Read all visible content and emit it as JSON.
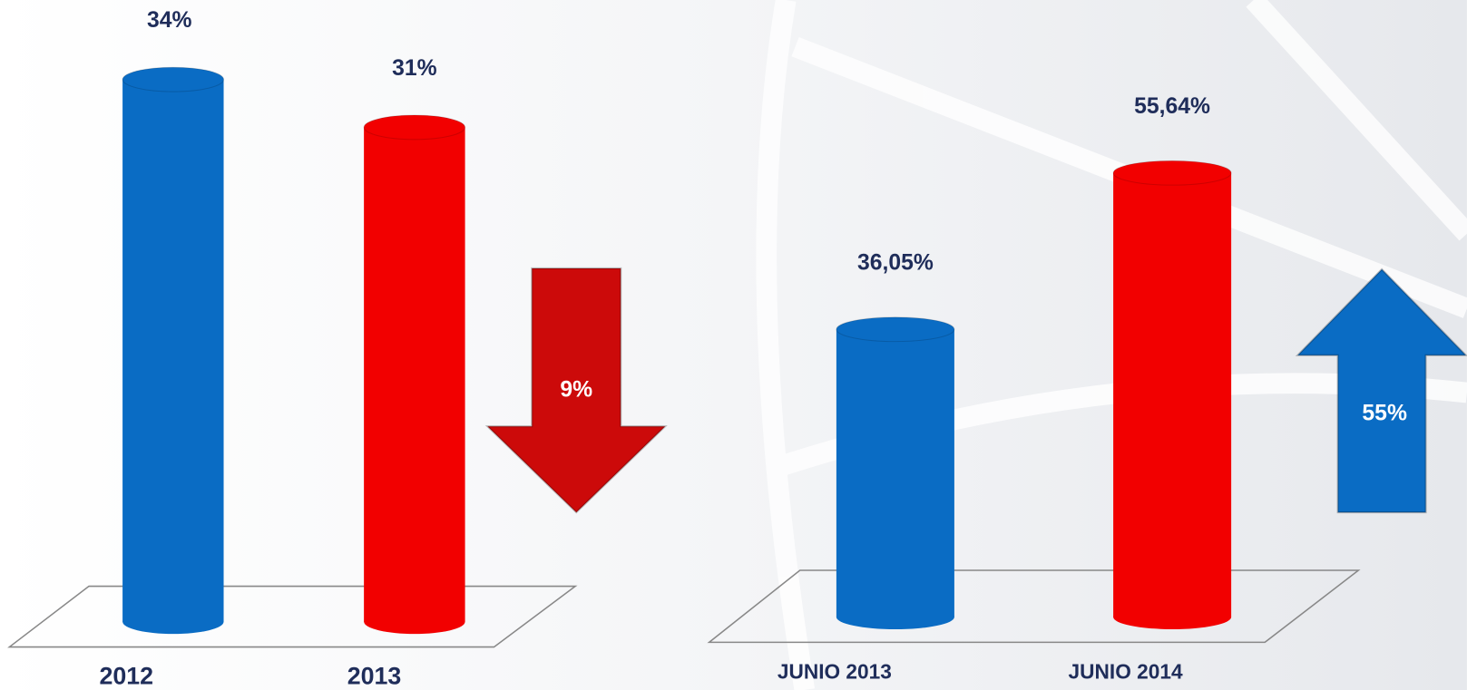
{
  "chart_data": [
    {
      "type": "bar",
      "categories": [
        "2012",
        "2013"
      ],
      "values": [
        34,
        31
      ],
      "value_labels": [
        "34%",
        "31%"
      ],
      "colors": [
        "#0a6cc4",
        "#f20000"
      ],
      "annotation": "9%",
      "annotation_color": "#cc0a0a"
    },
    {
      "type": "bar",
      "categories": [
        "JUNIO 2013",
        "JUNIO 2014"
      ],
      "values": [
        36.05,
        55.64
      ],
      "value_labels": [
        "36,05%",
        "55,64%"
      ],
      "colors": [
        "#0a6cc4",
        "#f20000"
      ],
      "annotation": "55%",
      "annotation_color": "#0a6cc4"
    }
  ]
}
